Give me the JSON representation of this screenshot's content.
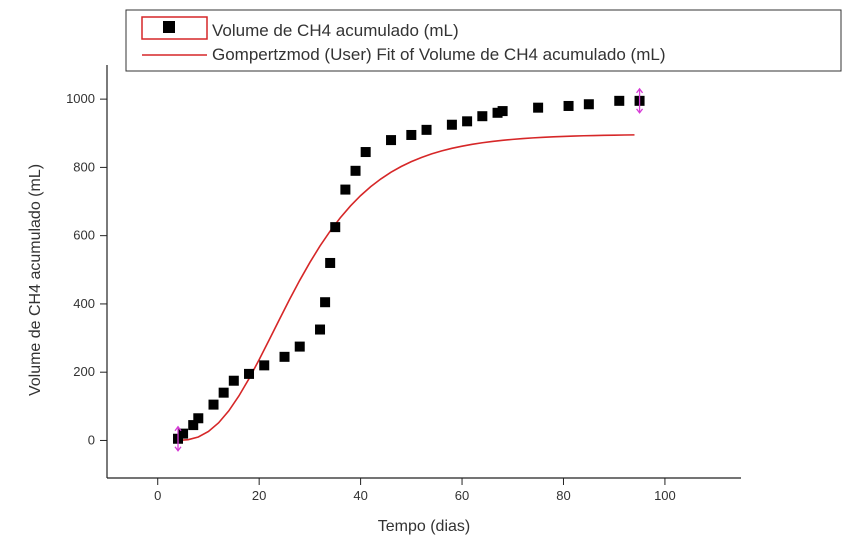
{
  "chart_data": {
    "type": "scatter",
    "title": "",
    "xlabel": "Tempo (dias)",
    "ylabel": "Volume de CH4 acumulado (mL)",
    "xlim": [
      -10,
      115
    ],
    "ylim": [
      -110,
      1100
    ],
    "xticks": [
      0,
      20,
      40,
      60,
      80,
      100
    ],
    "yticks": [
      0,
      200,
      400,
      600,
      800,
      1000
    ],
    "grid": false,
    "legend_position": "top",
    "series": [
      {
        "name": "Volume de CH4 acumulado (mL)",
        "kind": "scatter",
        "marker": "square",
        "color": "#000000",
        "x": [
          4,
          5,
          7,
          8,
          11,
          13,
          15,
          18,
          21,
          25,
          28,
          32,
          33,
          34,
          35,
          37,
          39,
          41,
          46,
          50,
          53,
          58,
          61,
          64,
          67,
          68,
          75,
          81,
          85,
          91,
          95
        ],
        "y": [
          5,
          20,
          45,
          65,
          105,
          140,
          175,
          195,
          220,
          245,
          275,
          325,
          405,
          520,
          625,
          735,
          790,
          845,
          880,
          895,
          910,
          925,
          935,
          950,
          960,
          965,
          975,
          980,
          985,
          995,
          995
        ]
      },
      {
        "name": "Gompertzmod (User) Fit of Volume de CH4 acumulado (mL)",
        "kind": "line",
        "color": "#d62728",
        "x": [
          4,
          6,
          8,
          10,
          12,
          14,
          16,
          18,
          20,
          22,
          24,
          26,
          28,
          30,
          32,
          34,
          36,
          38,
          40,
          42,
          44,
          46,
          48,
          50,
          52,
          54,
          56,
          58,
          60,
          62,
          64,
          66,
          68,
          70,
          72,
          74,
          76,
          78,
          80,
          82,
          84,
          86,
          88,
          90,
          92,
          94
        ],
        "y": [
          0.1,
          2.3,
          10.2,
          26.2,
          51.6,
          86.6,
          130.3,
          181,
          236.7,
          295.3,
          354.8,
          413.2,
          469.2,
          521.6,
          569.8,
          613.5,
          652.6,
          687.1,
          717.3,
          743.6,
          766.3,
          785.8,
          802.6,
          816.9,
          829.1,
          839.5,
          848.4,
          855.9,
          862.2,
          867.6,
          872.2,
          876.1,
          879.4,
          882.1,
          884.5,
          886.5,
          888.2,
          889.6,
          890.8,
          891.8,
          892.7,
          893.4,
          894,
          894.5,
          894.9,
          895.3
        ]
      }
    ],
    "error_markers": [
      {
        "x": 4,
        "y": 5,
        "color": "#d63bd6"
      },
      {
        "x": 95,
        "y": 995,
        "color": "#d63bd6"
      }
    ]
  }
}
